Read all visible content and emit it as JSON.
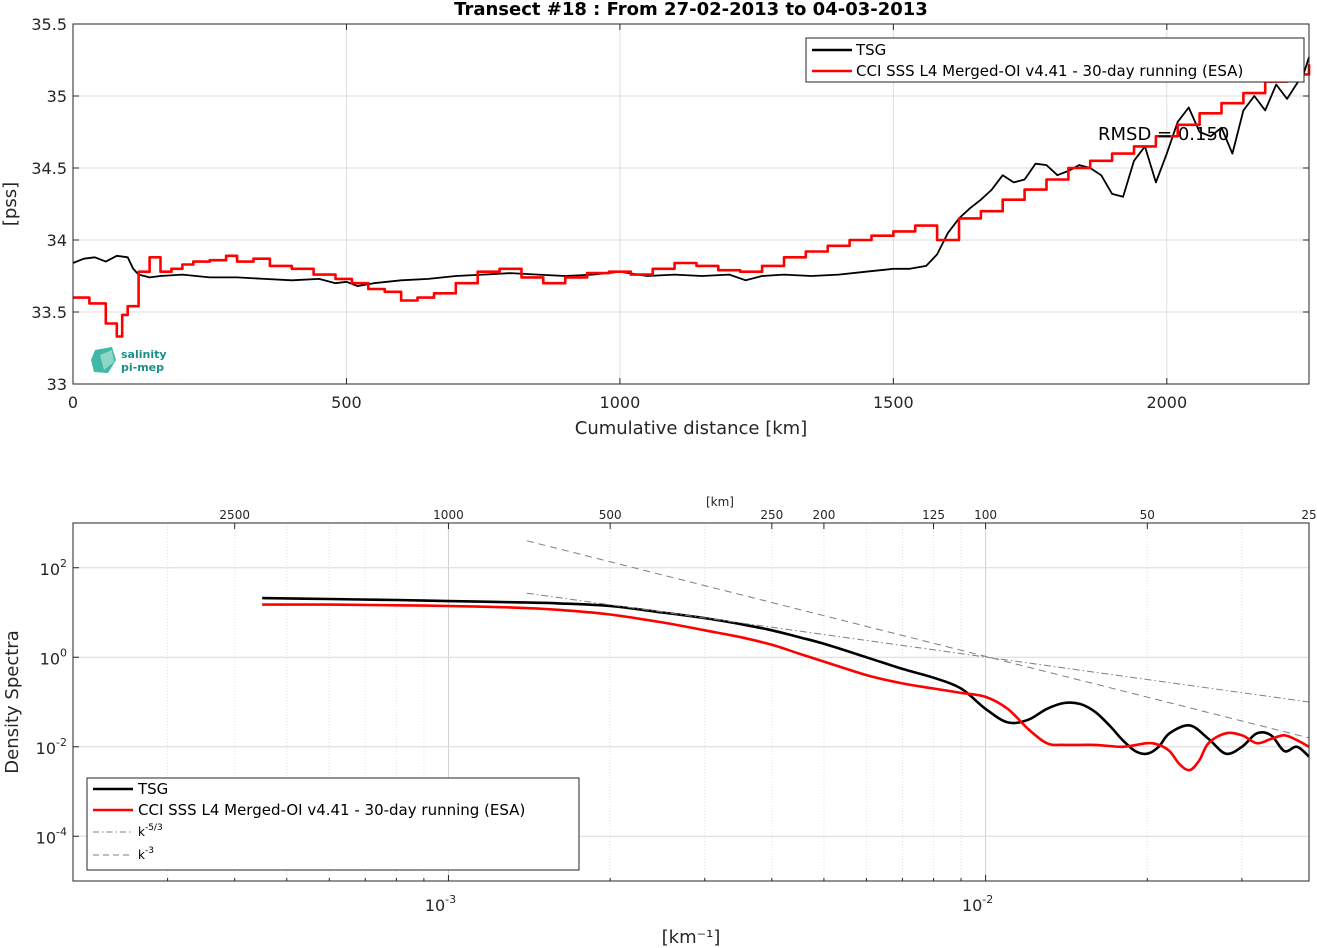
{
  "chart_data": [
    {
      "type": "line",
      "title": "Transect #18 : From 27-02-2013 to 04-03-2013",
      "xlabel": "Cumulative distance [km]",
      "ylabel": "[pss]",
      "xlim": [
        0,
        2260
      ],
      "ylim": [
        33,
        35.5
      ],
      "x_ticks": [
        "0",
        "500",
        "1000",
        "1500",
        "2000"
      ],
      "y_ticks": [
        "33",
        "33.5",
        "34",
        "34.5",
        "35",
        "35.5"
      ],
      "grid": true,
      "legend_position": "top-right",
      "annotation": "RMSD = 0.150",
      "logo": {
        "line1": "salinity",
        "line2": "pi-mep"
      },
      "series": [
        {
          "name": "TSG",
          "color": "#000000",
          "x": [
            0,
            20,
            40,
            60,
            80,
            100,
            110,
            120,
            140,
            160,
            200,
            250,
            300,
            350,
            400,
            450,
            480,
            500,
            520,
            550,
            600,
            650,
            700,
            750,
            800,
            850,
            900,
            950,
            1000,
            1050,
            1100,
            1150,
            1200,
            1230,
            1260,
            1300,
            1350,
            1400,
            1450,
            1500,
            1530,
            1560,
            1580,
            1600,
            1620,
            1640,
            1660,
            1680,
            1700,
            1720,
            1740,
            1760,
            1780,
            1800,
            1820,
            1840,
            1860,
            1880,
            1900,
            1920,
            1940,
            1960,
            1980,
            2000,
            2020,
            2040,
            2060,
            2080,
            2100,
            2120,
            2140,
            2160,
            2180,
            2200,
            2220,
            2240,
            2250,
            2260
          ],
          "y": [
            33.84,
            33.87,
            33.88,
            33.85,
            33.89,
            33.88,
            33.8,
            33.76,
            33.74,
            33.75,
            33.76,
            33.74,
            33.74,
            33.73,
            33.72,
            33.73,
            33.7,
            33.71,
            33.68,
            33.7,
            33.72,
            33.73,
            33.75,
            33.76,
            33.77,
            33.76,
            33.75,
            33.76,
            33.78,
            33.75,
            33.76,
            33.75,
            33.76,
            33.72,
            33.75,
            33.76,
            33.75,
            33.76,
            33.78,
            33.8,
            33.8,
            33.82,
            33.9,
            34.05,
            34.15,
            34.22,
            34.28,
            34.35,
            34.45,
            34.4,
            34.42,
            34.53,
            34.52,
            34.45,
            34.48,
            34.52,
            34.5,
            34.45,
            34.32,
            34.3,
            34.55,
            34.65,
            34.4,
            34.6,
            34.82,
            34.92,
            34.75,
            34.72,
            34.78,
            34.6,
            34.9,
            35.0,
            34.9,
            35.08,
            34.98,
            35.1,
            35.15,
            35.27
          ]
        },
        {
          "name": "CCI SSS L4 Merged-OI v4.41 - 30-day running (ESA)",
          "color": "#ff0000",
          "x": [
            0,
            30,
            60,
            80,
            90,
            100,
            120,
            140,
            160,
            180,
            200,
            220,
            250,
            280,
            300,
            330,
            360,
            400,
            440,
            480,
            510,
            540,
            570,
            600,
            630,
            660,
            700,
            740,
            780,
            820,
            860,
            900,
            940,
            980,
            1020,
            1060,
            1100,
            1140,
            1180,
            1220,
            1260,
            1300,
            1340,
            1380,
            1420,
            1460,
            1500,
            1540,
            1580,
            1620,
            1660,
            1700,
            1740,
            1780,
            1820,
            1860,
            1900,
            1940,
            1980,
            2020,
            2060,
            2100,
            2140,
            2180,
            2220,
            2260
          ],
          "y": [
            33.6,
            33.56,
            33.42,
            33.33,
            33.48,
            33.54,
            33.78,
            33.88,
            33.78,
            33.8,
            33.83,
            33.85,
            33.86,
            33.89,
            33.85,
            33.87,
            33.82,
            33.8,
            33.76,
            33.73,
            33.7,
            33.66,
            33.64,
            33.58,
            33.6,
            33.63,
            33.7,
            33.78,
            33.8,
            33.74,
            33.7,
            33.74,
            33.77,
            33.78,
            33.76,
            33.8,
            33.84,
            33.82,
            33.79,
            33.78,
            33.82,
            33.88,
            33.92,
            33.96,
            34.0,
            34.03,
            34.06,
            34.1,
            34.0,
            34.15,
            34.2,
            34.28,
            34.35,
            34.42,
            34.5,
            34.55,
            34.6,
            34.65,
            34.72,
            34.8,
            34.88,
            34.95,
            35.02,
            35.1,
            35.15,
            35.22
          ]
        }
      ]
    },
    {
      "type": "line",
      "title": "",
      "xlabel": "[km⁻¹]",
      "ylabel": "Density Spectra",
      "xscale": "log",
      "yscale": "log",
      "xlim": [
        0.0002,
        0.04
      ],
      "ylim": [
        1e-05,
        1000
      ],
      "x_ticks": [
        {
          "value": 0.001,
          "base": "10",
          "exp": "-3"
        },
        {
          "value": 0.01,
          "base": "10",
          "exp": "-2"
        }
      ],
      "y_ticks": [
        {
          "value": 100,
          "base": "10",
          "exp": "2"
        },
        {
          "value": 1,
          "base": "10",
          "exp": "0"
        },
        {
          "value": 0.01,
          "base": "10",
          "exp": "-2"
        },
        {
          "value": 0.0001,
          "base": "10",
          "exp": "-4"
        }
      ],
      "top_axis_label": "[km]",
      "top_ticks": [
        {
          "label": "2500",
          "wavelength_km": 2500
        },
        {
          "label": "1000",
          "wavelength_km": 1000
        },
        {
          "label": "500",
          "wavelength_km": 500
        },
        {
          "label": "250",
          "wavelength_km": 250
        },
        {
          "label": "200",
          "wavelength_km": 200
        },
        {
          "label": "125",
          "wavelength_km": 125
        },
        {
          "label": "100",
          "wavelength_km": 100
        },
        {
          "label": "50",
          "wavelength_km": 50
        },
        {
          "label": "25",
          "wavelength_km": 25
        }
      ],
      "grid": true,
      "legend_position": "bottom-left",
      "series": [
        {
          "name": "TSG",
          "color": "#000000",
          "x": [
            0.00045,
            0.0006,
            0.0008,
            0.001,
            0.0013,
            0.0016,
            0.002,
            0.0025,
            0.003,
            0.0035,
            0.004,
            0.0045,
            0.005,
            0.006,
            0.007,
            0.008,
            0.009,
            0.01,
            0.011,
            0.012,
            0.013,
            0.014,
            0.015,
            0.016,
            0.017,
            0.018,
            0.019,
            0.02,
            0.021,
            0.022,
            0.024,
            0.026,
            0.028,
            0.03,
            0.032,
            0.034,
            0.036,
            0.038,
            0.04
          ],
          "y": [
            21,
            20,
            19,
            18,
            17,
            16,
            14,
            10,
            7.5,
            5.5,
            4.0,
            2.8,
            2.0,
            1.0,
            0.55,
            0.35,
            0.2,
            0.07,
            0.035,
            0.04,
            0.07,
            0.095,
            0.09,
            0.06,
            0.03,
            0.014,
            0.008,
            0.007,
            0.01,
            0.02,
            0.03,
            0.015,
            0.007,
            0.01,
            0.02,
            0.018,
            0.008,
            0.01,
            0.006
          ]
        },
        {
          "name": "CCI SSS L4 Merged-OI v4.41 - 30-day running (ESA)",
          "color": "#ff0000",
          "x": [
            0.00045,
            0.0006,
            0.0008,
            0.001,
            0.0013,
            0.0016,
            0.002,
            0.0025,
            0.003,
            0.0035,
            0.004,
            0.0045,
            0.005,
            0.006,
            0.007,
            0.008,
            0.009,
            0.01,
            0.011,
            0.012,
            0.013,
            0.014,
            0.016,
            0.018,
            0.02,
            0.021,
            0.022,
            0.023,
            0.024,
            0.025,
            0.026,
            0.028,
            0.03,
            0.032,
            0.034,
            0.036,
            0.038,
            0.04
          ],
          "y": [
            15,
            15,
            14.5,
            14,
            13,
            11.5,
            9,
            6,
            4.0,
            2.8,
            1.9,
            1.2,
            0.8,
            0.4,
            0.26,
            0.2,
            0.16,
            0.13,
            0.07,
            0.025,
            0.012,
            0.011,
            0.011,
            0.01,
            0.012,
            0.011,
            0.008,
            0.004,
            0.003,
            0.005,
            0.012,
            0.02,
            0.018,
            0.012,
            0.015,
            0.018,
            0.014,
            0.01
          ]
        },
        {
          "name": "k⁻⁵/³",
          "color": "#7f7f7f",
          "dash": "dashdot",
          "x": [
            0.0014,
            0.04
          ],
          "y": [
            27,
            0.1
          ]
        },
        {
          "name": "k⁻³",
          "color": "#7f7f7f",
          "dash": "dashed",
          "x": [
            0.0014,
            0.04
          ],
          "y": [
            400,
            0.0158
          ]
        }
      ],
      "legend": [
        {
          "label": "TSG"
        },
        {
          "label": "CCI SSS L4 Merged-OI v4.41 - 30-day running (ESA)"
        },
        {
          "base": "k",
          "exp": "-5/3"
        },
        {
          "base": "k",
          "exp": "-3"
        }
      ]
    }
  ]
}
